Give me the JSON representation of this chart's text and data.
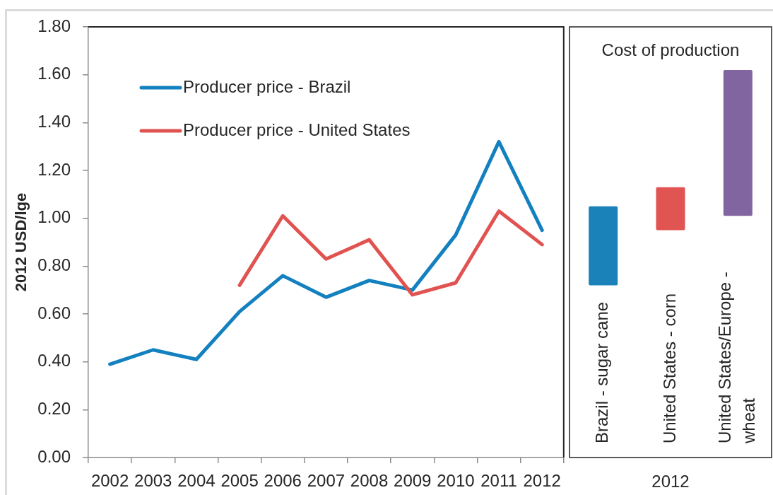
{
  "chart_data": [
    {
      "type": "line",
      "ylabel": "2012 USD/lge",
      "categories": [
        "2002",
        "2003",
        "2004",
        "2005",
        "2006",
        "2007",
        "2008",
        "2009",
        "2010",
        "2011",
        "2012"
      ],
      "series": [
        {
          "name": "Producer price - Brazil",
          "color": "#1380bf",
          "values": [
            0.39,
            0.45,
            0.41,
            0.61,
            0.76,
            0.67,
            0.74,
            0.7,
            0.93,
            1.32,
            0.95
          ]
        },
        {
          "name": "Producer price - United States",
          "color": "#e05350",
          "values": [
            null,
            null,
            null,
            0.72,
            1.01,
            0.83,
            0.91,
            0.68,
            0.73,
            1.03,
            0.89
          ]
        }
      ],
      "ylim": [
        0,
        1.8
      ],
      "yticks": [
        {
          "value": 0,
          "label": "0.00"
        },
        {
          "value": 0.2,
          "label": "0.20"
        },
        {
          "value": 0.4,
          "label": "0.40"
        },
        {
          "value": 0.6,
          "label": "0.60"
        },
        {
          "value": 0.8,
          "label": "0.80"
        },
        {
          "value": 1,
          "label": "1.00"
        },
        {
          "value": 1.2,
          "label": "1.20"
        },
        {
          "value": 1.4,
          "label": "1.40"
        },
        {
          "value": 1.6,
          "label": "1.60"
        },
        {
          "value": 1.8,
          "label": "1.80"
        }
      ],
      "legend": "top left"
    },
    {
      "type": "bar",
      "title": "Cost of production",
      "xlabel": "2012",
      "categories": [
        "Brazil - sugar cane",
        "United States - corn",
        "United States/Europe - wheat"
      ],
      "values": [
        0.33,
        0.18,
        0.61
      ],
      "base": [
        0.72,
        0.95,
        1.01
      ],
      "colors": [
        "#1a82b9",
        "#e05452",
        "#8065a0"
      ],
      "ylim": [
        0,
        1.8
      ],
      "tick_labels": "x"
    }
  ]
}
